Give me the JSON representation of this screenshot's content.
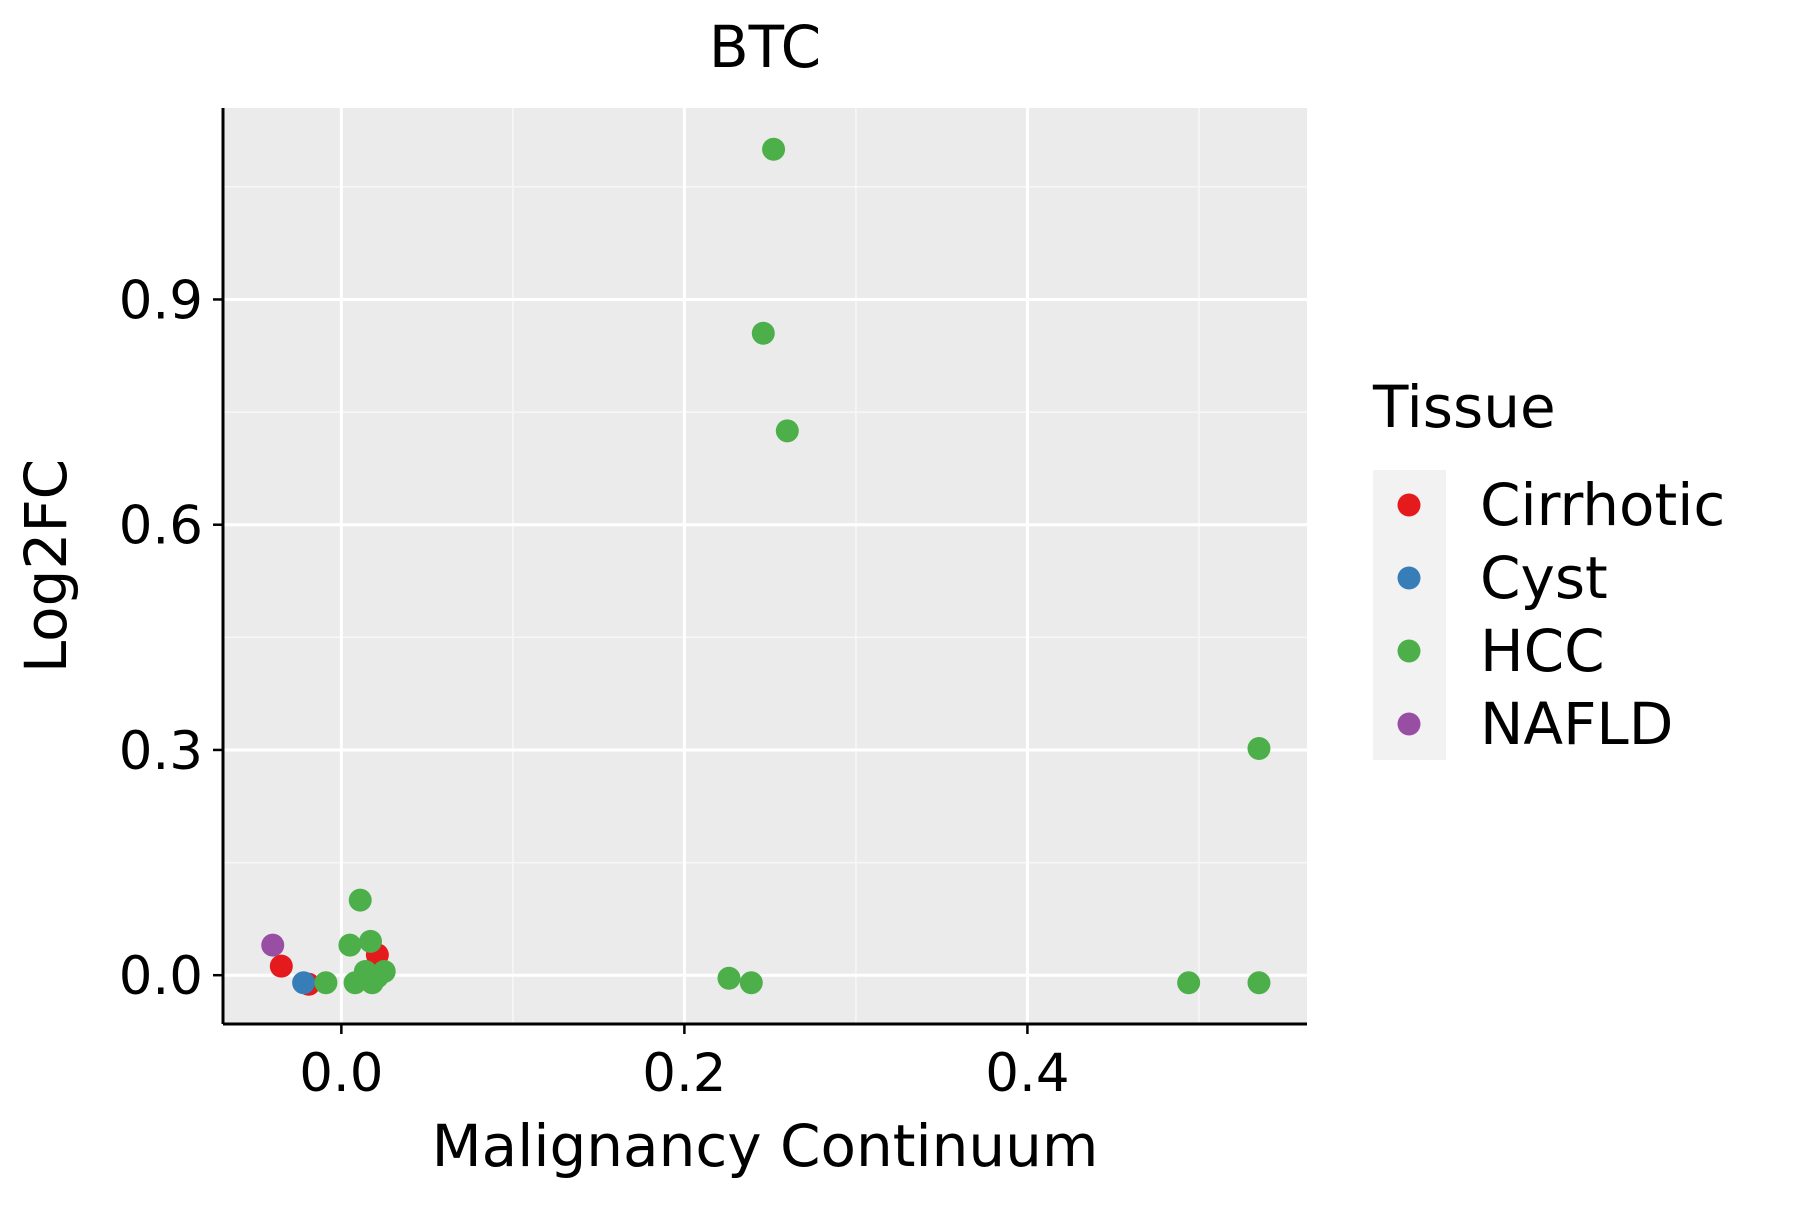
{
  "chart_data": {
    "type": "scatter",
    "title": "BTC",
    "xlabel": "Malignancy Continuum",
    "ylabel": "Log2FC",
    "xlim": [
      -0.069,
      0.563
    ],
    "ylim": [
      -0.065,
      1.155
    ],
    "x_ticks": [
      0.0,
      0.2,
      0.4
    ],
    "x_tick_labels": [
      "0.0",
      "0.2",
      "0.4"
    ],
    "x_minor_ticks": [
      0.1,
      0.3,
      0.5
    ],
    "y_ticks": [
      0.0,
      0.3,
      0.6,
      0.9
    ],
    "y_tick_labels": [
      "0.0",
      "0.3",
      "0.6",
      "0.9"
    ],
    "y_minor_ticks": [
      0.15,
      0.45,
      0.75,
      1.05
    ],
    "grid": true,
    "legend": {
      "title": "Tissue",
      "placement": "right"
    },
    "series": [
      {
        "name": "Cirrhotic",
        "color": "#e41a1c",
        "points": [
          {
            "x": -0.035,
            "y": 0.012
          },
          {
            "x": -0.019,
            "y": -0.012
          },
          {
            "x": 0.021,
            "y": 0.027
          }
        ]
      },
      {
        "name": "Cyst",
        "color": "#377eb8",
        "points": [
          {
            "x": -0.022,
            "y": -0.01
          }
        ]
      },
      {
        "name": "HCC",
        "color": "#4daf4a",
        "points": [
          {
            "x": 0.252,
            "y": 1.1
          },
          {
            "x": 0.246,
            "y": 0.855
          },
          {
            "x": 0.26,
            "y": 0.725
          },
          {
            "x": 0.535,
            "y": 0.302
          },
          {
            "x": 0.011,
            "y": 0.1
          },
          {
            "x": 0.017,
            "y": 0.045
          },
          {
            "x": 0.005,
            "y": 0.04
          },
          {
            "x": 0.014,
            "y": 0.005
          },
          {
            "x": 0.025,
            "y": 0.005
          },
          {
            "x": 0.021,
            "y": -0.002
          },
          {
            "x": -0.009,
            "y": -0.01
          },
          {
            "x": 0.008,
            "y": -0.01
          },
          {
            "x": 0.018,
            "y": -0.01
          },
          {
            "x": 0.226,
            "y": -0.004
          },
          {
            "x": 0.239,
            "y": -0.01
          },
          {
            "x": 0.494,
            "y": -0.01
          },
          {
            "x": 0.535,
            "y": -0.01
          }
        ]
      },
      {
        "name": "NAFLD",
        "color": "#984ea3",
        "points": [
          {
            "x": -0.04,
            "y": 0.04
          }
        ]
      }
    ]
  },
  "colors": {
    "panel_background": "#ebebeb",
    "grid_major": "#ffffff",
    "grid_minor": "#f7f7f7",
    "legend_key_background": "#f2f2f2",
    "axis_line": "#000000"
  }
}
